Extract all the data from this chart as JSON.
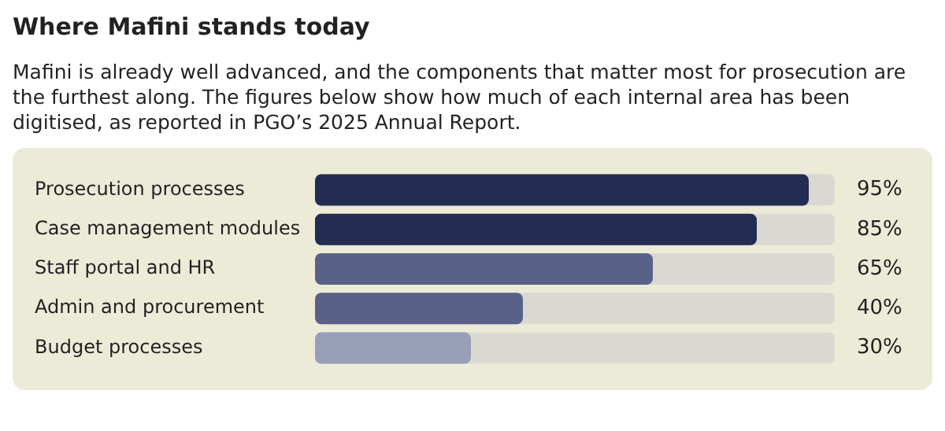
{
  "chart_data": {
    "type": "bar",
    "orientation": "horizontal",
    "title": "Where Mafini stands today",
    "subtitle": "Mafini is already well advanced, and the components that matter most for prosecution are the furthest along. The figures below show how much of each internal area has been digitised, as reported in PGO’s 2025 Annual Report.",
    "categories": [
      "Prosecution processes",
      "Case management modules",
      "Staff portal and HR",
      "Admin and procurement",
      "Budget processes"
    ],
    "values": [
      95,
      85,
      65,
      40,
      30
    ],
    "colors": [
      "#232c52",
      "#232c52",
      "#5a6189",
      "#5a6189",
      "#9a9fb8"
    ],
    "value_labels": [
      "95%",
      "85%",
      "65%",
      "40%",
      "30%"
    ],
    "xlim": [
      0,
      100
    ],
    "grid": false,
    "legend": false
  }
}
